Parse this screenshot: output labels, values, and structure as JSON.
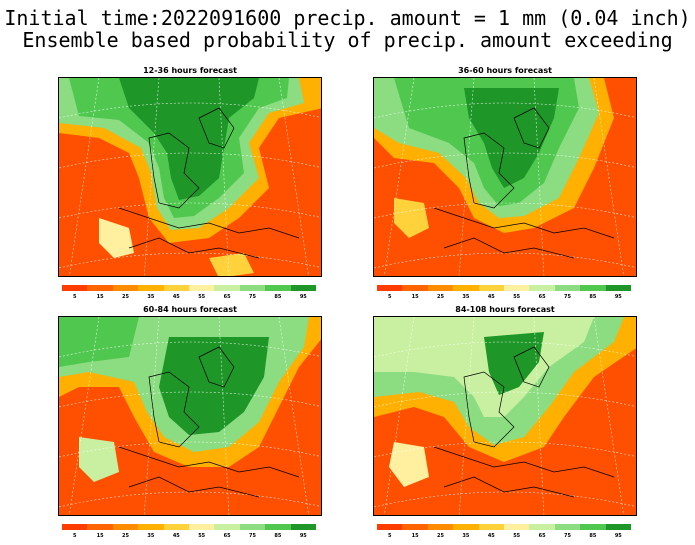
{
  "header": {
    "line1": "Initial time:2022091600 precip. amount = 1 mm (0.04 inch)",
    "line2": "Ensemble based probability of precip. amount exceeding"
  },
  "panels": [
    {
      "title": "12-36 hours forecast"
    },
    {
      "title": "36-60 hours forecast"
    },
    {
      "title": "60-84 hours forecast"
    },
    {
      "title": "84-108 hours forecast"
    }
  ],
  "colorbar": {
    "colors": [
      "#ff3c00",
      "#ff6400",
      "#ff8c00",
      "#ffb000",
      "#ffd23c",
      "#fff0a0",
      "#c8f0a0",
      "#8cdc82",
      "#50c850",
      "#1e9628"
    ],
    "labels": [
      "5",
      "15",
      "25",
      "35",
      "45",
      "55",
      "65",
      "75",
      "85",
      "95"
    ]
  }
}
